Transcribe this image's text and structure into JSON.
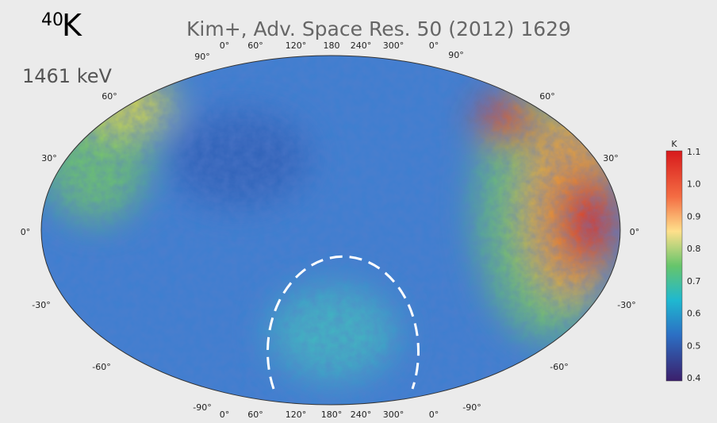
{
  "header": {
    "isotope_mass": "40",
    "element": "K",
    "energy": "1461 keV",
    "citation": "Kim+, Adv. Space Res. 50 (2012) 1629"
  },
  "map": {
    "latitude_labels_left": [
      "90°",
      "60°",
      "30°",
      "0°",
      "-30°",
      "-60°",
      "-90°"
    ],
    "latitude_labels_right": [
      "90°",
      "60°",
      "30°",
      "0°",
      "-30°",
      "-60°",
      "-90°"
    ],
    "longitude_labels_top": [
      "0°",
      "60°",
      "120°",
      "180",
      "240°",
      "300°",
      "0°"
    ],
    "longitude_labels_bottom": [
      "0°",
      "60°",
      "120°",
      "180°",
      "240°",
      "300°",
      "0°"
    ]
  },
  "colorbar": {
    "title": "K",
    "ticks": [
      "1.1",
      "1.0",
      "0.9",
      "0.8",
      "0.7",
      "0.6",
      "0.5",
      "0.4"
    ]
  }
}
